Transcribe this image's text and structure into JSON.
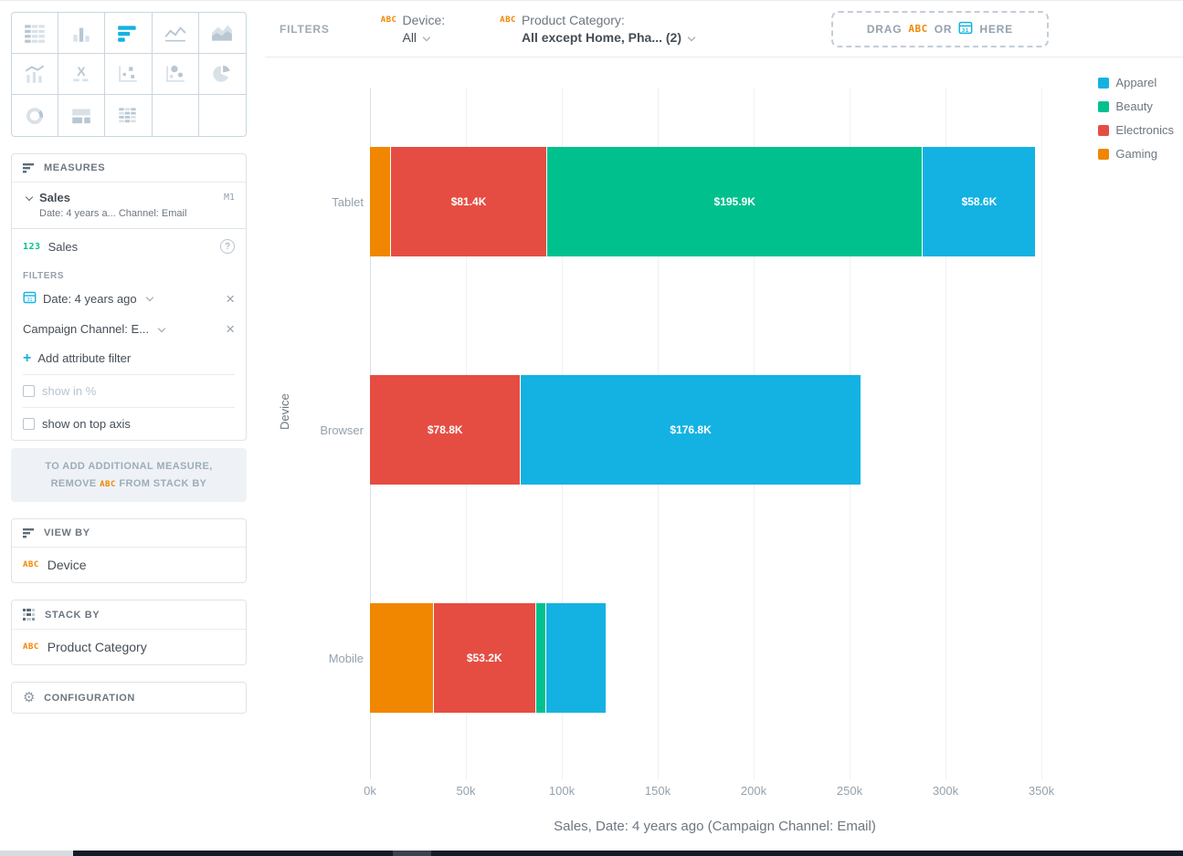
{
  "visualization_picker": {
    "selected": "bar-chart",
    "items": [
      "table",
      "column-chart",
      "bar-chart",
      "line-chart",
      "area-chart",
      "combo-chart",
      "headline",
      "scatter-plot",
      "bubble-chart",
      "pie-chart",
      "donut-chart",
      "treemap",
      "heatmap",
      "empty-1",
      "empty-2"
    ]
  },
  "sidebar": {
    "measures": {
      "title": "MEASURES",
      "measure_name": "Sales",
      "measure_tag": "M1",
      "measure_subtitle": "Date: 4 years a... Channel: Email",
      "item_numeric_tag": "123",
      "item_label": "Sales",
      "help_icon": "?",
      "filters_title": "FILTERS",
      "filter1": "Date: 4 years ago",
      "filter2": "Campaign Channel: E...",
      "add_filter": "Add attribute filter",
      "show_in_percent": "show in %",
      "show_on_top_axis": "show on top axis",
      "note_line1": "TO ADD ADDITIONAL MEASURE,",
      "note_remove": "REMOVE",
      "note_abc": "ABC",
      "note_rest": "FROM STACK BY"
    },
    "view_by": {
      "title": "VIEW BY",
      "item_tag": "ABC",
      "item_label": "Device"
    },
    "stack_by": {
      "title": "STACK BY",
      "item_tag": "ABC",
      "item_label": "Product Category"
    },
    "configuration": {
      "title": "CONFIGURATION"
    }
  },
  "filters_bar": {
    "label": "FILTERS",
    "device": {
      "tag": "ABC",
      "name": "Device:",
      "value": "All"
    },
    "product_category": {
      "tag": "ABC",
      "name": "Product Category:",
      "value": "All except Home, Pha... (2)"
    },
    "drop_zone": {
      "drag": "DRAG",
      "abc": "ABC",
      "or": "OR",
      "here": "HERE"
    }
  },
  "chart_data": {
    "type": "bar",
    "orientation": "horizontal",
    "stacked": true,
    "categories": [
      "Tablet",
      "Browser",
      "Mobile"
    ],
    "series": [
      {
        "name": "Apparel",
        "color": "#14b2e2",
        "values": [
          58600,
          176800,
          31000
        ],
        "labels": [
          "$58.6K",
          "$176.8K",
          ""
        ]
      },
      {
        "name": "Beauty",
        "color": "#00c18d",
        "values": [
          195900,
          0,
          5500
        ],
        "labels": [
          "$195.9K",
          "",
          ""
        ]
      },
      {
        "name": "Electronics",
        "color": "#e54d42",
        "values": [
          81400,
          78800,
          53200
        ],
        "labels": [
          "$81.4K",
          "$78.8K",
          "$53.2K"
        ]
      },
      {
        "name": "Gaming",
        "color": "#f18600",
        "values": [
          11000,
          0,
          33300
        ],
        "labels": [
          "",
          "",
          ""
        ]
      }
    ],
    "stack_order": [
      "Gaming",
      "Electronics",
      "Beauty",
      "Apparel"
    ],
    "legend": [
      "Apparel",
      "Beauty",
      "Electronics",
      "Gaming"
    ],
    "legend_position": "right",
    "grid": true,
    "xlim": [
      0,
      350000
    ],
    "x_ticks": [
      "0k",
      "50k",
      "100k",
      "150k",
      "200k",
      "250k",
      "300k",
      "350k"
    ],
    "xlabel": "Sales, Date: 4 years ago (Campaign Channel: Email)",
    "ylabel": "Device"
  }
}
